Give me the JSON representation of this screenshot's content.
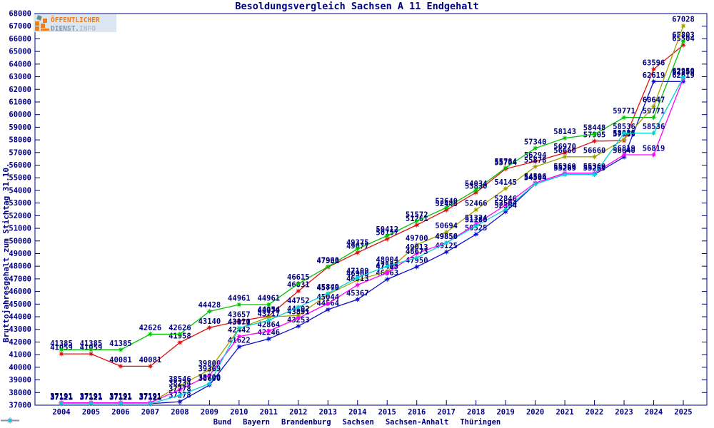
{
  "title": "Besoldungsvergleich Sachsen A 11 Endgehalt",
  "logo": {
    "line1": "ÖFFENTLICHER",
    "line2_part1": "DIENST.",
    "line2_part2": "INFO"
  },
  "chart_data": {
    "type": "line",
    "title": "Besoldungsvergleich Sachsen A 11 Endgehalt",
    "xlabel": "",
    "ylabel": "Bruttojahresgehalt zum Stichtag 31.10.",
    "ylim": [
      37000,
      68000
    ],
    "ytick_step": 1000,
    "grid": false,
    "legend_position": "bottom",
    "axis_color": "#000080",
    "marker": "star",
    "point_labels": true,
    "x": [
      2004,
      2005,
      2006,
      2007,
      2008,
      2009,
      2010,
      2011,
      2012,
      2013,
      2014,
      2015,
      2016,
      2017,
      2018,
      2019,
      2020,
      2021,
      2022,
      2023,
      2024,
      2025
    ],
    "series": [
      {
        "name": "Bund",
        "color": "#e01010",
        "values": [
          41059,
          41059,
          40081,
          40081,
          41958,
          43140,
          43657,
          44054,
          46031,
          47931,
          49077,
          50157,
          51261,
          52448,
          53830,
          55704,
          56294,
          56970,
          57905,
          57935,
          63596,
          65504
        ]
      },
      {
        "name": "Bayern",
        "color": "#00c400",
        "values": [
          41385,
          41385,
          41385,
          42626,
          42626,
          44428,
          44961,
          44961,
          46615,
          47960,
          49375,
          50412,
          51572,
          52640,
          54034,
          55784,
          57340,
          58143,
          58448,
          59771,
          59771,
          65803
        ]
      },
      {
        "name": "Brandenburg",
        "color": "#0f0fd0",
        "values": [
          37121,
          37121,
          37121,
          37121,
          37278,
          38600,
          41622,
          42246,
          43253,
          44564,
          45367,
          46963,
          47950,
          49125,
          50525,
          52304,
          54504,
          55269,
          55269,
          56640,
          62619,
          62619
        ]
      },
      {
        "name": "Sachsen",
        "color": "#a0a000",
        "values": [
          37191,
          37191,
          37191,
          37191,
          38546,
          39800,
          43071,
          43979,
          44102,
          45770,
          46906,
          47585,
          49700,
          50694,
          52466,
          54145,
          55878,
          56660,
          56660,
          58036,
          60647,
          67028
        ]
      },
      {
        "name": "Sachsen-Anhalt",
        "color": "#ff00ff",
        "values": [
          37191,
          37191,
          37191,
          37191,
          38234,
          39369,
          42442,
          42864,
          43891,
          45044,
          46513,
          47485,
          49013,
          49856,
          51324,
          52846,
          54596,
          55369,
          55369,
          56819,
          56819,
          62859
        ]
      },
      {
        "name": "Thüringen",
        "color": "#00d2d2",
        "values": [
          37121,
          37121,
          37121,
          37121,
          37778,
          38700,
          43110,
          43717,
          44752,
          45849,
          47109,
          48004,
          48673,
          49850,
          51186,
          52504,
          54504,
          55269,
          55269,
          58536,
          58536,
          62950
        ]
      }
    ]
  }
}
